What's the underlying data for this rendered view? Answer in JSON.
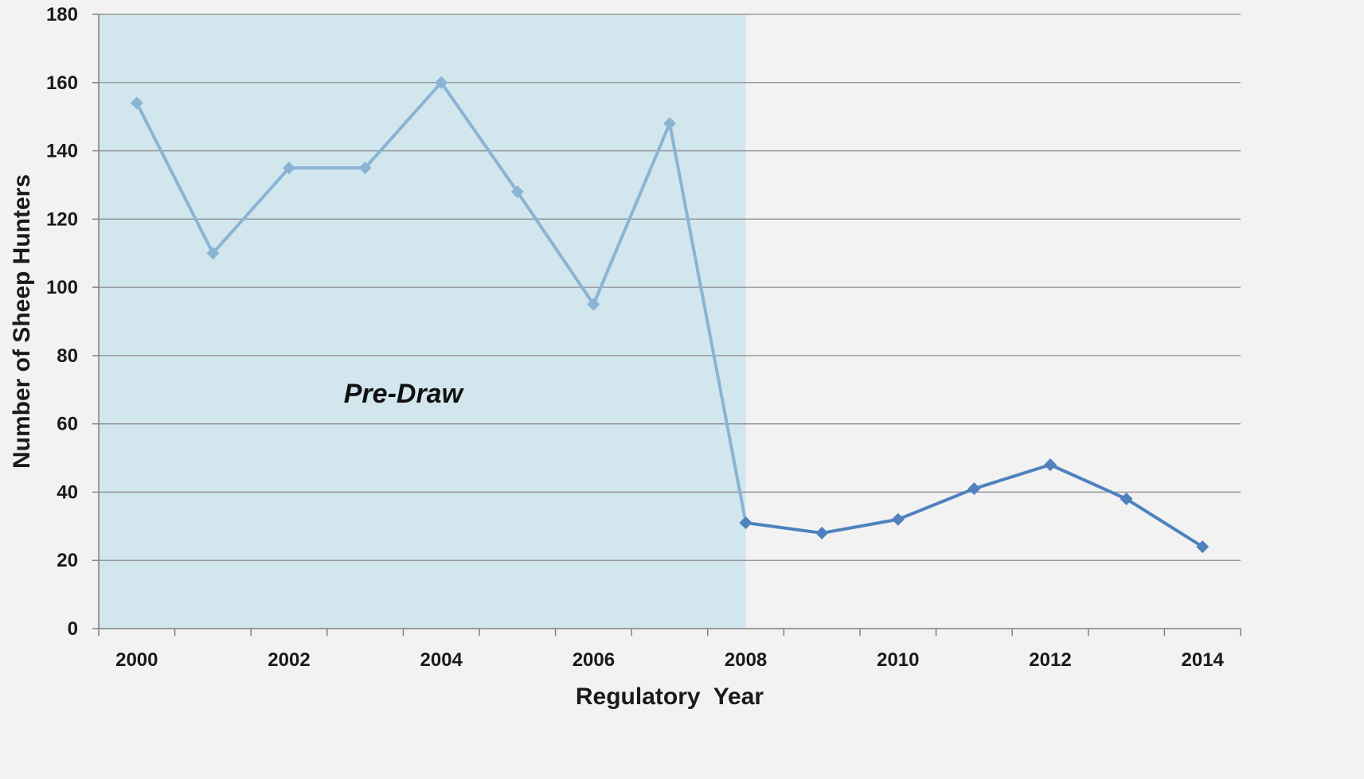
{
  "chart_data": {
    "type": "line",
    "title": "",
    "xlabel": "Regulatory  Year",
    "ylabel": "Number of Sheep Hunters",
    "xlim": [
      2000,
      2015
    ],
    "ylim": [
      0,
      180
    ],
    "y_ticks": [
      0,
      20,
      40,
      60,
      80,
      100,
      120,
      140,
      160,
      180
    ],
    "x_tick_labels": [
      "2000",
      "2002",
      "2004",
      "2006",
      "2008",
      "2010",
      "2012",
      "2014"
    ],
    "grid": "horizontal",
    "shaded_region": {
      "label": "Pre-Draw",
      "x_start": 1999.5,
      "x_end": 2008,
      "color": "#d2e6ee"
    },
    "series": [
      {
        "color": "#8ab4d4",
        "x": [
          2000,
          2001,
          2002,
          2003,
          2004,
          2005,
          2006,
          2007,
          2008
        ],
        "values": [
          154,
          110,
          135,
          135,
          160,
          128,
          95,
          148,
          31
        ]
      },
      {
        "color": "#4f81bd",
        "x": [
          2008,
          2009,
          2010,
          2011,
          2012,
          2013,
          2014
        ],
        "values": [
          31,
          28,
          32,
          41,
          48,
          38,
          24
        ]
      }
    ],
    "colors": {
      "background": "#f2f2f2",
      "gridline": "#8c8c8c",
      "axis": "#808080"
    }
  }
}
